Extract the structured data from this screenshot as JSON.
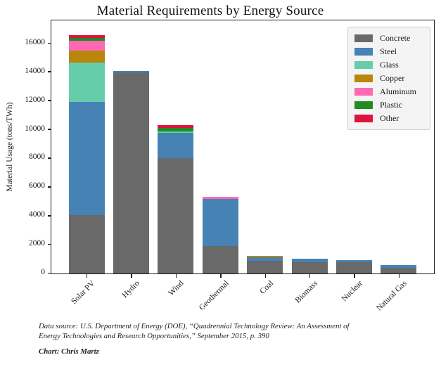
{
  "chart_data": {
    "type": "bar",
    "stacked": true,
    "title": "Material Requirements by Energy Source",
    "xlabel": "",
    "ylabel": "Material Usage (tons/TWh)",
    "ylim": [
      0,
      17550
    ],
    "yticks": [
      0,
      2000,
      4000,
      6000,
      8000,
      10000,
      12000,
      14000,
      16000
    ],
    "grid": false,
    "legend_position": "upper right",
    "categories": [
      "Solar PV",
      "Hydro",
      "Wind",
      "Geothermal",
      "Coal",
      "Biomass",
      "Nuclear",
      "Natural Gas"
    ],
    "series": [
      {
        "name": "Concrete",
        "color": "#696969",
        "values": [
          4050,
          14000,
          8000,
          1900,
          860,
          800,
          760,
          400
        ]
      },
      {
        "name": "Steel",
        "color": "#4682b4",
        "values": [
          7900,
          100,
          1800,
          3290,
          250,
          250,
          190,
          170
        ]
      },
      {
        "name": "Glass",
        "color": "#66cdaa",
        "values": [
          2700,
          0,
          100,
          0,
          0,
          0,
          0,
          0
        ]
      },
      {
        "name": "Copper",
        "color": "#b8860b",
        "values": [
          850,
          0,
          0,
          0,
          90,
          0,
          0,
          0
        ]
      },
      {
        "name": "Aluminum",
        "color": "#ff69b4",
        "values": [
          680,
          0,
          0,
          160,
          0,
          0,
          0,
          0
        ]
      },
      {
        "name": "Plastic",
        "color": "#228b22",
        "values": [
          210,
          0,
          200,
          0,
          0,
          0,
          0,
          0
        ]
      },
      {
        "name": "Other",
        "color": "#dc143c",
        "values": [
          200,
          0,
          230,
          0,
          0,
          0,
          0,
          0
        ]
      }
    ],
    "totals": [
      16590,
      14100,
      10330,
      5350,
      1200,
      1050,
      950,
      570
    ]
  },
  "footer": {
    "source_line1": "Data source: U.S. Department of Energy (DOE), “Quadrennial Technology Review: An Assessment of",
    "source_line2": "Energy Technologies and Research Opportunities,” September 2015, p. 390",
    "credit": "Chart: Chris Martz"
  }
}
